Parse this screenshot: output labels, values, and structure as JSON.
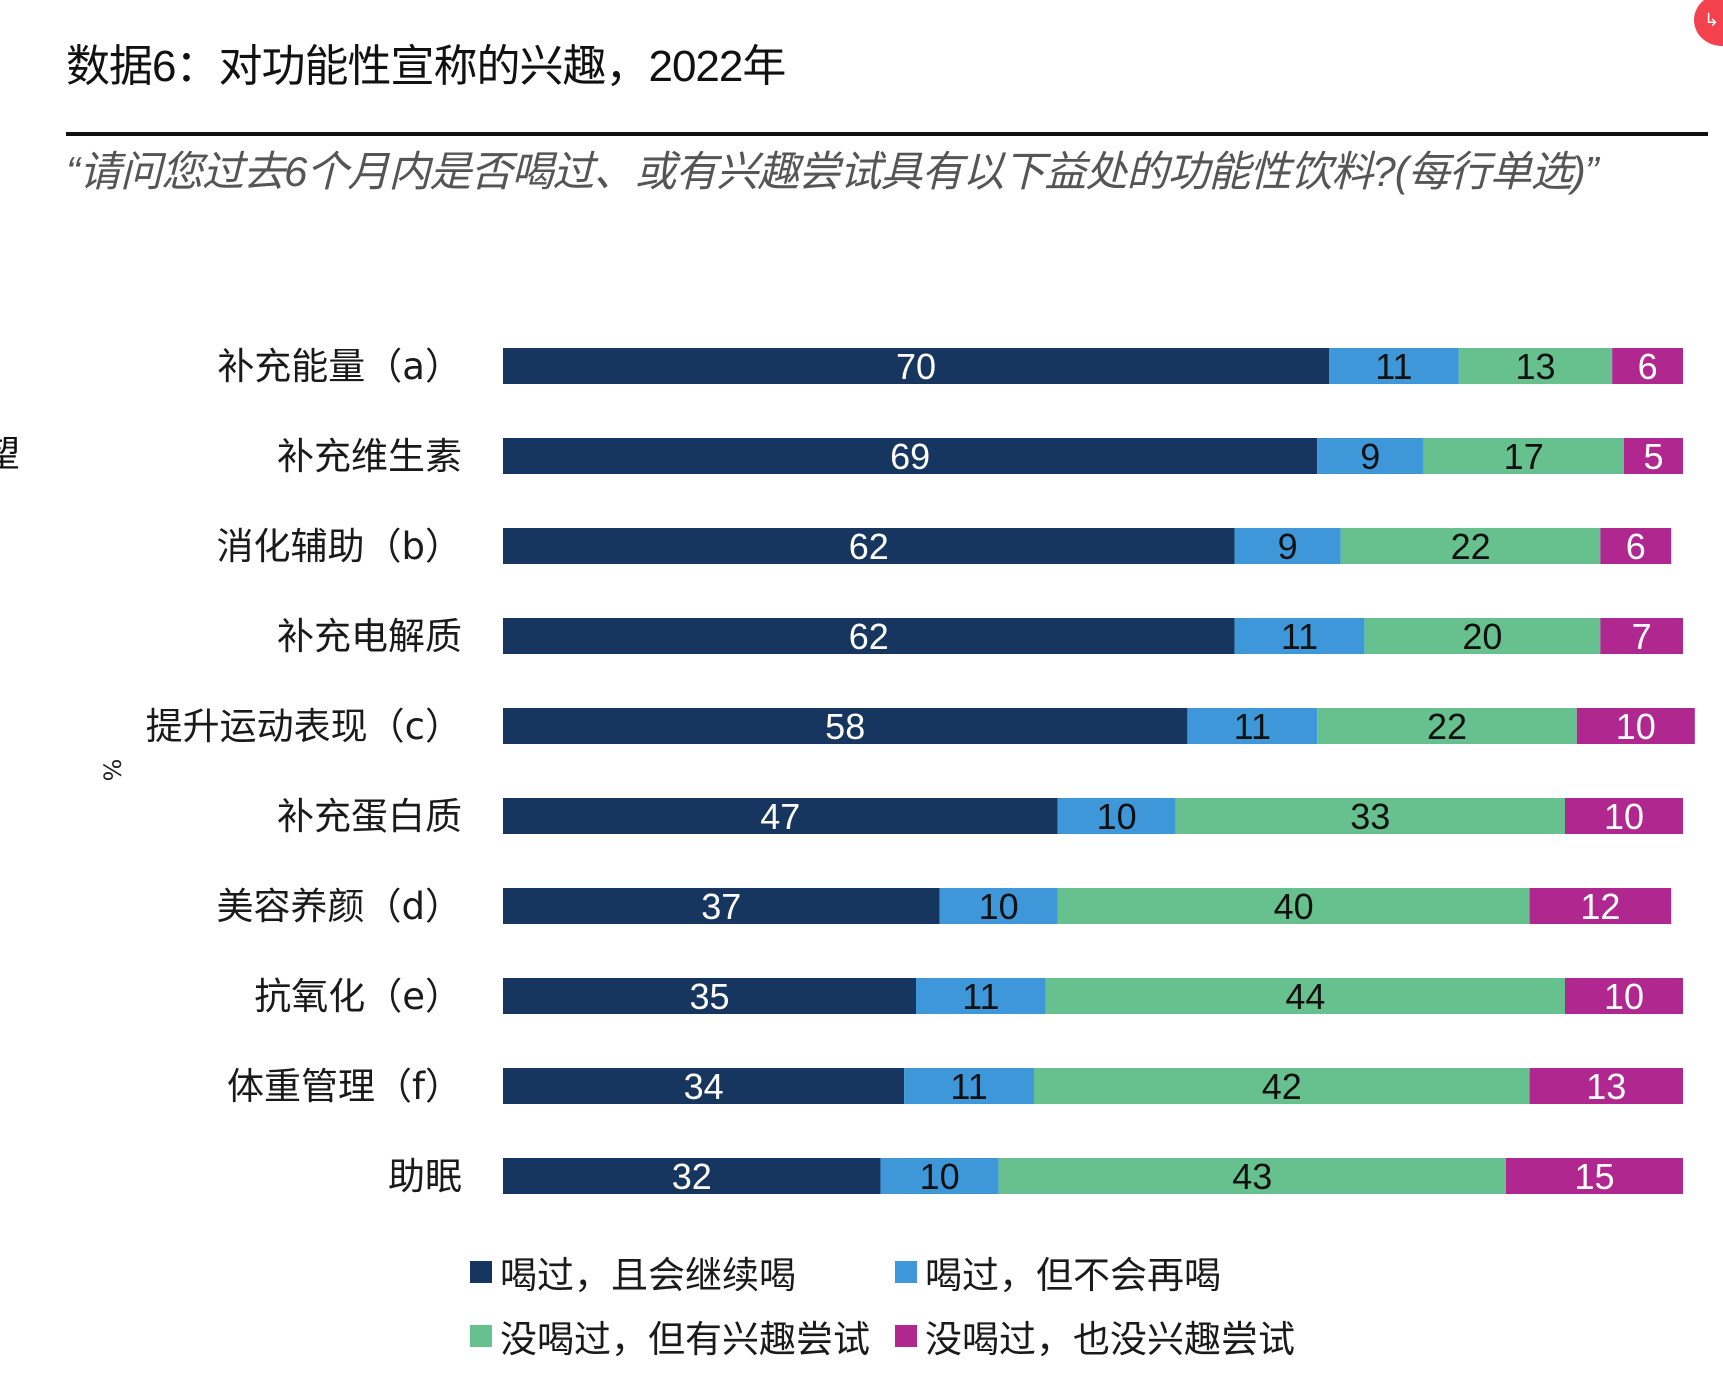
{
  "header": {
    "title": "数据6：对功能性宣称的兴趣，2022年",
    "subtitle": "“请问您过去6个月内是否喝过、或有兴趣尝试具有以下益处的功能性饮料?(每行单选)”"
  },
  "overlay": {
    "badge_icon": "↳",
    "edge_glyph": "望"
  },
  "chart_data": {
    "type": "bar",
    "orientation": "horizontal",
    "stacked": true,
    "unit_label": "%",
    "xlim": [
      0,
      100
    ],
    "grid": false,
    "legend_position": "bottom",
    "categories": [
      "补充能量（a）",
      "补充维生素",
      "消化辅助（b）",
      "补充电解质",
      "提升运动表现（c）",
      "补充蛋白质",
      "美容养颜（d）",
      "抗氧化（e）",
      "体重管理（f）",
      "助眠"
    ],
    "series": [
      {
        "name": "喝过，且会继续喝",
        "color": "#17365f",
        "label_color": "#ffffff",
        "values": [
          70,
          69,
          62,
          62,
          58,
          47,
          37,
          35,
          34,
          32
        ]
      },
      {
        "name": "喝过，但不会再喝",
        "color": "#3d97d8",
        "label_color": "#111111",
        "values": [
          11,
          9,
          9,
          11,
          11,
          10,
          10,
          11,
          11,
          10
        ]
      },
      {
        "name": "没喝过，但有兴趣尝试",
        "color": "#67c18f",
        "label_color": "#111111",
        "values": [
          13,
          17,
          22,
          20,
          22,
          33,
          40,
          44,
          42,
          43
        ]
      },
      {
        "name": "没喝过，也没兴趣尝试",
        "color": "#b0278f",
        "label_color": "#ffffff",
        "values": [
          6,
          5,
          6,
          7,
          10,
          10,
          12,
          10,
          13,
          15
        ]
      }
    ]
  }
}
